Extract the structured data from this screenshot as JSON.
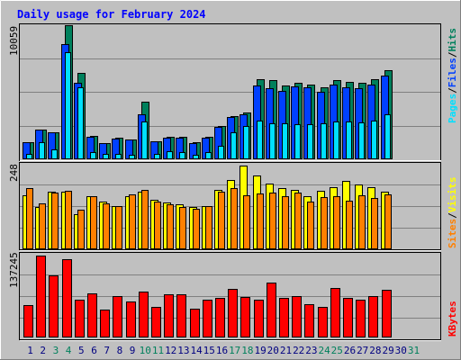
{
  "title": "Daily usage for February 2024",
  "colors": {
    "background": "#c0c0c0",
    "panel": "#c0c0c0",
    "title": "#0000ff",
    "hits": "#00805c",
    "files": "#0040ff",
    "pages": "#00e0ff",
    "visits": "#ffff00",
    "sites": "#ff8000",
    "kbytes": "#ff0000",
    "weekend_day": "#00805c",
    "weekday": "#000080"
  },
  "legend_top": {
    "pages": "Pages",
    "sep1": "/",
    "files": "Files",
    "sep2": "/",
    "hits": "Hits"
  },
  "legend_mid": {
    "sites": "Sites",
    "sep1": "/",
    "visits": "Visits"
  },
  "legend_bot": {
    "kbytes": "KBytes"
  },
  "chart_data": [
    {
      "type": "bar",
      "panel": "top",
      "max_label": "10059",
      "ylim": [
        0,
        10059
      ],
      "categories": [
        "1",
        "2",
        "3",
        "4",
        "5",
        "6",
        "7",
        "8",
        "9",
        "10",
        "11",
        "12",
        "13",
        "14",
        "15",
        "16",
        "17",
        "18",
        "19",
        "20",
        "21",
        "22",
        "23",
        "24",
        "25",
        "26",
        "27",
        "28",
        "29",
        "30",
        "31"
      ],
      "weekend_days": [
        3,
        4,
        10,
        11,
        17,
        18,
        24,
        25,
        31
      ],
      "series": [
        {
          "name": "Hits",
          "values": [
            1250,
            2200,
            2000,
            10059,
            6450,
            1700,
            1150,
            1550,
            1400,
            4300,
            1300,
            1650,
            1600,
            1200,
            1600,
            2450,
            3200,
            3500,
            6000,
            5900,
            5500,
            5700,
            5550,
            5400,
            5900,
            5800,
            5700,
            6000,
            6650,
            null,
            null
          ]
        },
        {
          "name": "Files",
          "values": [
            1250,
            2200,
            2000,
            8600,
            5700,
            1650,
            1150,
            1500,
            1400,
            3300,
            1300,
            1550,
            1550,
            1150,
            1550,
            2400,
            3100,
            3300,
            5500,
            5300,
            5100,
            5450,
            5400,
            5050,
            5600,
            5400,
            5300,
            5550,
            6250,
            null,
            null
          ]
        },
        {
          "name": "Pages",
          "values": [
            350,
            1250,
            650,
            8050,
            5400,
            450,
            350,
            350,
            300,
            2800,
            350,
            550,
            500,
            250,
            500,
            950,
            1950,
            2450,
            2850,
            2650,
            2650,
            2600,
            2600,
            2650,
            2800,
            2800,
            2700,
            2850,
            3350,
            null,
            null
          ]
        }
      ]
    },
    {
      "type": "bar",
      "panel": "middle",
      "max_label": "248",
      "ylim": [
        0,
        248
      ],
      "categories": [
        "1",
        "2",
        "3",
        "4",
        "5",
        "6",
        "7",
        "8",
        "9",
        "10",
        "11",
        "12",
        "13",
        "14",
        "15",
        "16",
        "17",
        "18",
        "19",
        "20",
        "21",
        "22",
        "23",
        "24",
        "25",
        "26",
        "27",
        "28",
        "29",
        "30",
        "31"
      ],
      "series": [
        {
          "name": "Visits",
          "values": [
            158,
            125,
            170,
            170,
            103,
            155,
            140,
            128,
            156,
            170,
            145,
            138,
            131,
            123,
            128,
            175,
            204,
            248,
            217,
            193,
            180,
            176,
            155,
            172,
            182,
            201,
            191,
            184,
            170,
            null,
            null
          ]
        },
        {
          "name": "Sites",
          "values": [
            181,
            135,
            168,
            172,
            115,
            155,
            136,
            126,
            162,
            176,
            141,
            133,
            125,
            118,
            126,
            170,
            181,
            160,
            164,
            168,
            155,
            168,
            141,
            153,
            156,
            142,
            158,
            150,
            162,
            null,
            null
          ]
        }
      ]
    },
    {
      "type": "bar",
      "panel": "bottom",
      "max_label": "137245",
      "ylim": [
        0,
        137245
      ],
      "categories": [
        "1",
        "2",
        "3",
        "4",
        "5",
        "6",
        "7",
        "8",
        "9",
        "10",
        "11",
        "12",
        "13",
        "14",
        "15",
        "16",
        "17",
        "18",
        "19",
        "20",
        "21",
        "22",
        "23",
        "24",
        "25",
        "26",
        "27",
        "28",
        "29",
        "30",
        "31"
      ],
      "series": [
        {
          "name": "KBytes",
          "values": [
            53000,
            137245,
            103000,
            131000,
            63000,
            73000,
            45000,
            69000,
            59000,
            77000,
            51000,
            71000,
            71000,
            47000,
            63000,
            65000,
            81000,
            67000,
            63000,
            91000,
            65000,
            69000,
            55000,
            51000,
            83000,
            65000,
            63000,
            69000,
            79000,
            null,
            null
          ]
        }
      ]
    }
  ]
}
